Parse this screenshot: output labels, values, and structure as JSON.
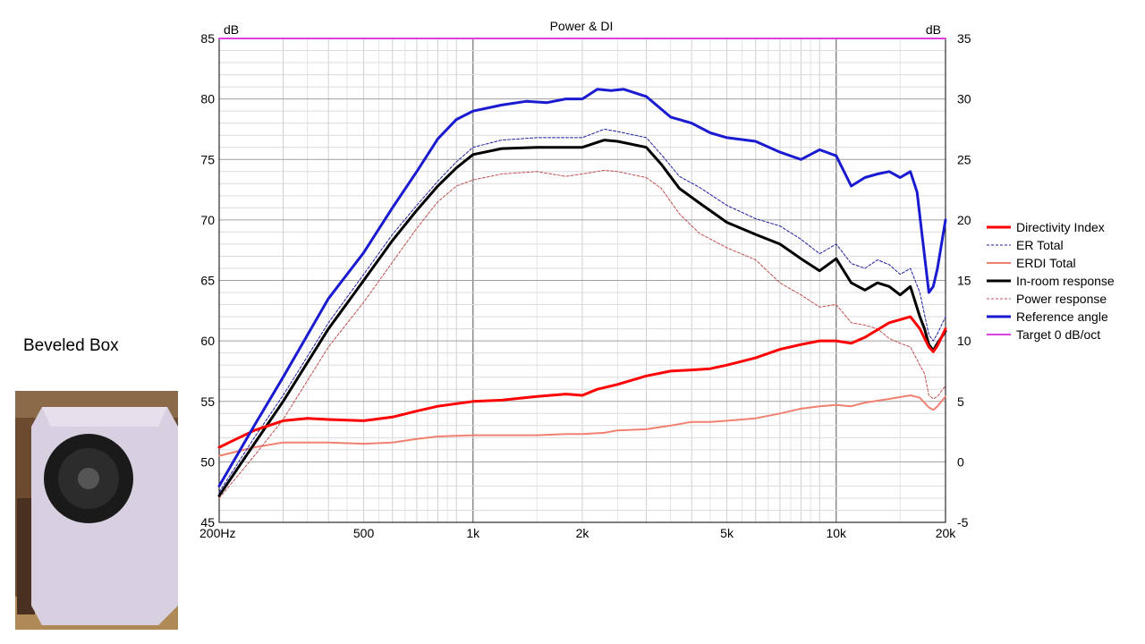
{
  "side_caption": "Beveled Box",
  "chart_data": {
    "type": "line",
    "title": "Power & DI",
    "left_axis_unit": "dB",
    "right_axis_unit": "dB",
    "x_scale": "log",
    "xlim": [
      200,
      20000
    ],
    "ylim_left": [
      45,
      85
    ],
    "ylim_right": [
      -5,
      35
    ],
    "x_tick_labels": [
      {
        "value": 200,
        "label": "200Hz"
      },
      {
        "value": 500,
        "label": "500"
      },
      {
        "value": 1000,
        "label": "1k"
      },
      {
        "value": 2000,
        "label": "2k"
      },
      {
        "value": 5000,
        "label": "5k"
      },
      {
        "value": 10000,
        "label": "10k"
      },
      {
        "value": 20000,
        "label": "20k"
      }
    ],
    "y_left_ticks": [
      85,
      80,
      75,
      70,
      65,
      60,
      55,
      50,
      45
    ],
    "y_right_ticks": [
      35,
      30,
      25,
      20,
      15,
      10,
      5,
      0,
      -5
    ],
    "grid": true,
    "legend_position": "right",
    "series": [
      {
        "name": "Directivity Index",
        "axis": "right",
        "color": "#ff0000",
        "dash": "solid",
        "width": 3,
        "x": [
          200,
          250,
          300,
          350,
          400,
          500,
          600,
          700,
          800,
          1000,
          1200,
          1500,
          1800,
          2000,
          2200,
          2500,
          3000,
          3500,
          4000,
          4500,
          5000,
          6000,
          7000,
          8000,
          9000,
          10000,
          11000,
          12000,
          14000,
          16000,
          17000,
          18000,
          18500,
          19000,
          20000
        ],
        "y": [
          1.2,
          2.6,
          3.4,
          3.6,
          3.5,
          3.4,
          3.7,
          4.2,
          4.6,
          5,
          5.1,
          5.4,
          5.6,
          5.5,
          6,
          6.4,
          7.1,
          7.5,
          7.6,
          7.7,
          8,
          8.6,
          9.3,
          9.7,
          10,
          10,
          9.8,
          10.3,
          11.5,
          12,
          11,
          9.5,
          9.1,
          9.6,
          11
        ]
      },
      {
        "name": "ER Total",
        "axis": "left",
        "color": "#1f1fa0",
        "dash": "3,2",
        "width": 1,
        "x": [
          200,
          250,
          300,
          400,
          500,
          600,
          700,
          800,
          900,
          1000,
          1200,
          1500,
          1800,
          2000,
          2300,
          2500,
          3000,
          3300,
          3700,
          4200,
          5000,
          6000,
          7000,
          8000,
          9000,
          10000,
          11000,
          12000,
          13000,
          14000,
          15000,
          16000,
          17000,
          17500,
          18000,
          18500,
          19000,
          20000
        ],
        "y": [
          47.5,
          52,
          55.5,
          61.5,
          65.5,
          68.8,
          71.2,
          73.2,
          74.8,
          76,
          76.6,
          76.8,
          76.8,
          76.8,
          77.5,
          77.3,
          76.8,
          75.4,
          73.6,
          72.7,
          71.2,
          70.1,
          69.5,
          68.4,
          67.2,
          68,
          66.4,
          66,
          66.7,
          66.3,
          65.5,
          66,
          64,
          62.2,
          60.5,
          60,
          60.6,
          62
        ]
      },
      {
        "name": "ERDI Total",
        "axis": "right",
        "color": "#f08070",
        "dash": "solid",
        "width": 2,
        "x": [
          200,
          250,
          300,
          400,
          500,
          600,
          700,
          800,
          1000,
          1200,
          1500,
          1800,
          2000,
          2300,
          2500,
          3000,
          3500,
          4000,
          4500,
          5000,
          6000,
          7000,
          8000,
          9000,
          10000,
          11000,
          12000,
          14000,
          16000,
          17000,
          18000,
          18500,
          19000,
          20000
        ],
        "y": [
          0.5,
          1.2,
          1.6,
          1.6,
          1.5,
          1.6,
          1.9,
          2.1,
          2.2,
          2.2,
          2.2,
          2.3,
          2.3,
          2.4,
          2.6,
          2.7,
          3,
          3.3,
          3.3,
          3.4,
          3.6,
          4,
          4.4,
          4.6,
          4.7,
          4.6,
          4.9,
          5.2,
          5.5,
          5.3,
          4.5,
          4.3,
          4.6,
          5.4
        ]
      },
      {
        "name": "In-room response",
        "axis": "left",
        "color": "#000000",
        "dash": "solid",
        "width": 3,
        "x": [
          200,
          250,
          300,
          400,
          500,
          600,
          700,
          800,
          900,
          1000,
          1200,
          1500,
          1800,
          2000,
          2300,
          2500,
          3000,
          3300,
          3700,
          4200,
          5000,
          6000,
          7000,
          8000,
          9000,
          10000,
          11000,
          12000,
          13000,
          14000,
          15000,
          16000,
          17000,
          17500,
          18000,
          18500,
          19000,
          20000
        ],
        "y": [
          47.2,
          51.5,
          55,
          61,
          65,
          68.3,
          70.8,
          72.8,
          74.3,
          75.4,
          75.9,
          76,
          76,
          76,
          76.6,
          76.5,
          76,
          74.6,
          72.6,
          71.4,
          69.8,
          68.8,
          68,
          66.8,
          65.8,
          66.8,
          64.8,
          64.2,
          64.8,
          64.5,
          63.8,
          64.5,
          62,
          61,
          59.7,
          59.2,
          59.8,
          60.8
        ]
      },
      {
        "name": "Power response",
        "axis": "left",
        "color": "#c05050",
        "dash": "3,2",
        "width": 1,
        "x": [
          200,
          250,
          300,
          400,
          500,
          600,
          700,
          800,
          900,
          1000,
          1200,
          1500,
          1800,
          2000,
          2300,
          2500,
          3000,
          3300,
          3700,
          4200,
          5000,
          6000,
          7000,
          8000,
          9000,
          10000,
          11000,
          12000,
          13000,
          14000,
          15000,
          16000,
          17000,
          17500,
          18000,
          18500,
          19000,
          20000
        ],
        "y": [
          47,
          50.5,
          53.5,
          59.5,
          63.2,
          66.5,
          69.3,
          71.5,
          72.8,
          73.3,
          73.8,
          74,
          73.6,
          73.8,
          74.1,
          74,
          73.5,
          72.6,
          70.5,
          68.9,
          67.7,
          66.7,
          64.8,
          63.8,
          62.8,
          63,
          61.5,
          61.3,
          61,
          60.2,
          59.8,
          59.5,
          58,
          57.3,
          55.5,
          55.2,
          55.4,
          56.3
        ]
      },
      {
        "name": "Reference angle",
        "axis": "left",
        "color": "#1a1ad0",
        "dash": "solid",
        "width": 3,
        "x": [
          200,
          250,
          300,
          400,
          500,
          600,
          700,
          800,
          900,
          1000,
          1200,
          1400,
          1600,
          1800,
          2000,
          2200,
          2400,
          2600,
          3000,
          3500,
          4000,
          4500,
          5000,
          6000,
          7000,
          8000,
          9000,
          10000,
          11000,
          12000,
          13000,
          14000,
          15000,
          16000,
          16700,
          17200,
          18000,
          18500,
          19000,
          20000
        ],
        "y": [
          48,
          53,
          57,
          63.5,
          67.3,
          71,
          74,
          76.7,
          78.3,
          79,
          79.5,
          79.8,
          79.7,
          80,
          80,
          80.8,
          80.7,
          80.8,
          80.2,
          78.5,
          78,
          77.2,
          76.8,
          76.5,
          75.6,
          75,
          75.8,
          75.3,
          72.8,
          73.5,
          73.8,
          74,
          73.5,
          74,
          72.3,
          69,
          64,
          64.5,
          66,
          70
        ]
      },
      {
        "name": "Target 0 dB/oct",
        "axis": "left",
        "color": "#e040e0",
        "dash": "solid",
        "width": 2,
        "x": [
          200,
          20000
        ],
        "y": [
          85,
          85
        ]
      }
    ]
  }
}
